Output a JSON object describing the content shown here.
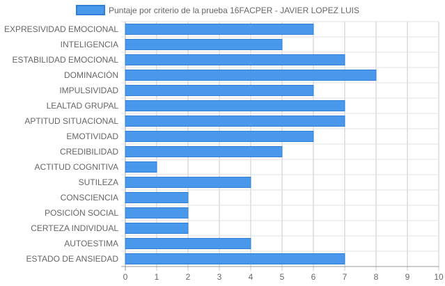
{
  "chart_data": {
    "type": "bar",
    "orientation": "horizontal",
    "categories": [
      "EXPRESIVIDAD EMOCIONAL",
      "INTELIGENCIA",
      "ESTABILIDAD EMOCIONAL",
      "DOMINACIÓN",
      "IMPULSIVIDAD",
      "LEALTAD GRUPAL",
      "APTITUD SITUACIONAL",
      "EMOTIVIDAD",
      "CREDIBILIDAD",
      "ACTITUD COGNITIVA",
      "SUTILEZA",
      "CONSCIENCIA",
      "POSICIÓN SOCIAL",
      "CERTEZA INDIVIDUAL",
      "AUTOESTIMA",
      "ESTADO DE ANSIEDAD"
    ],
    "series": [
      {
        "name": "Puntaje por criterio de la prueba 16FACPER - JAVIER LOPEZ LUIS",
        "values": [
          6,
          5,
          7,
          8,
          6,
          7,
          7,
          6,
          5,
          1,
          4,
          2,
          2,
          2,
          4,
          7
        ]
      }
    ],
    "xlim": [
      0,
      10
    ],
    "xticks": [
      "0",
      "1",
      "2",
      "3",
      "4",
      "5",
      "6",
      "7",
      "8",
      "9",
      "10"
    ],
    "grid": true,
    "legend_position": "top",
    "colors": {
      "bar_fill": "#4a98ec",
      "bar_stroke": "#2f7fd8",
      "grid": "#c8c8c8",
      "text": "#666666"
    }
  }
}
